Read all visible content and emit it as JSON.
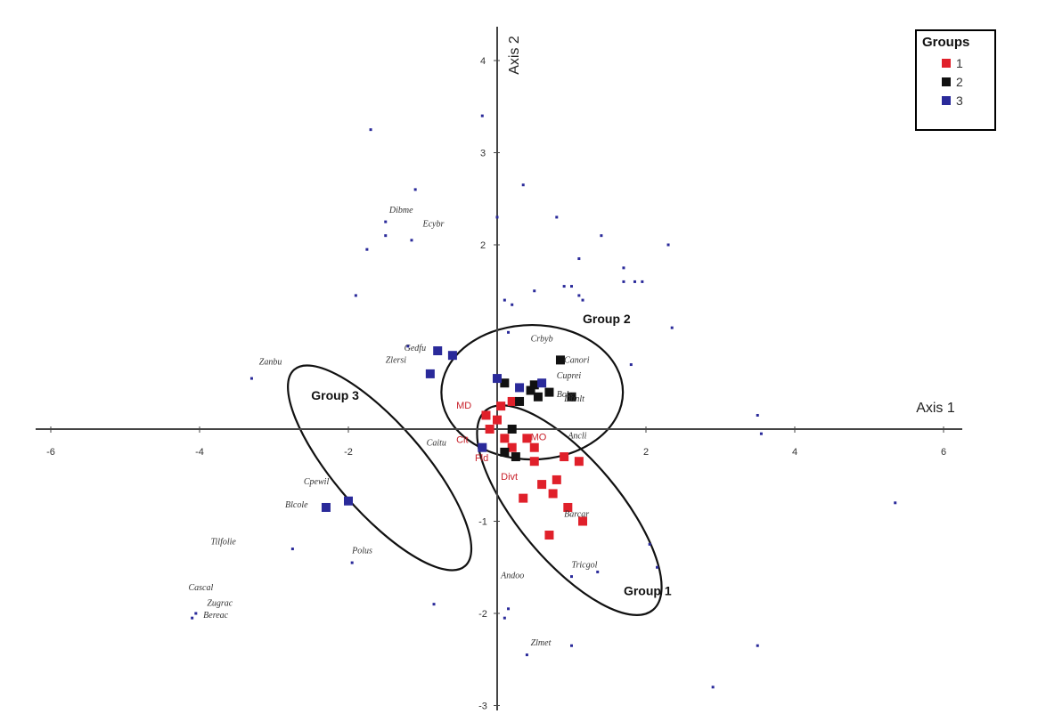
{
  "chart_data": {
    "type": "scatter",
    "title": "",
    "xlabel": "Axis 1",
    "ylabel": "Axis 2",
    "xlim": [
      -6,
      6
    ],
    "ylim": [
      -3,
      4.3
    ],
    "x_ticks": [
      -6,
      -4,
      -2,
      2,
      4,
      6
    ],
    "y_ticks": [
      4,
      3,
      2,
      -1,
      -2,
      -3
    ],
    "legend": {
      "title": "Groups",
      "position": "top-right",
      "entries": [
        {
          "label": "1",
          "color": "#e0202a"
        },
        {
          "label": "2",
          "color": "#111111"
        },
        {
          "label": "3",
          "color": "#2a2a9a"
        }
      ]
    },
    "groups": [
      {
        "name": "Group 1",
        "label_at": [
          1.7,
          -1.8
        ],
        "ellipse": {
          "cx": 0.97,
          "cy": -0.88,
          "rx": 1.75,
          "ry": 0.55,
          "angle_deg": 50
        }
      },
      {
        "name": "Group 2",
        "label_at": [
          1.15,
          1.15
        ],
        "ellipse": {
          "cx": 0.47,
          "cy": 0.4,
          "rx": 1.22,
          "ry": 0.73,
          "angle_deg": 0
        }
      },
      {
        "name": "Group 3",
        "label_at": [
          -2.5,
          0.32
        ],
        "ellipse": {
          "cx": -1.58,
          "cy": -0.42,
          "rx": 1.75,
          "ry": 0.48,
          "angle_deg": 49
        }
      }
    ],
    "series": [
      {
        "name": "1",
        "color": "#e0202a",
        "marker": "square",
        "points": [
          [
            0.2,
            0.3
          ],
          [
            0.0,
            0.1
          ],
          [
            -0.1,
            0.0
          ],
          [
            0.1,
            -0.1
          ],
          [
            0.2,
            -0.2
          ],
          [
            0.4,
            -0.1
          ],
          [
            0.5,
            -0.2
          ],
          [
            0.5,
            -0.35
          ],
          [
            0.9,
            -0.3
          ],
          [
            1.1,
            -0.35
          ],
          [
            0.8,
            -0.55
          ],
          [
            0.6,
            -0.6
          ],
          [
            0.75,
            -0.7
          ],
          [
            0.95,
            -0.85
          ],
          [
            1.15,
            -1.0
          ],
          [
            0.7,
            -1.15
          ],
          [
            0.35,
            -0.75
          ],
          [
            0.05,
            0.25
          ],
          [
            -0.15,
            0.15
          ]
        ]
      },
      {
        "name": "2",
        "color": "#111111",
        "marker": "square",
        "points": [
          [
            0.45,
            0.42
          ],
          [
            0.55,
            0.35
          ],
          [
            0.7,
            0.4
          ],
          [
            0.85,
            0.75
          ],
          [
            1.0,
            0.35
          ],
          [
            0.3,
            0.3
          ],
          [
            0.5,
            0.48
          ],
          [
            0.1,
            0.5
          ],
          [
            0.2,
            0.0
          ],
          [
            0.25,
            -0.3
          ],
          [
            0.1,
            -0.25
          ]
        ]
      },
      {
        "name": "3",
        "color": "#2a2a9a",
        "marker": "square",
        "points": [
          [
            -0.8,
            0.85
          ],
          [
            -0.6,
            0.8
          ],
          [
            -0.9,
            0.6
          ],
          [
            -2.3,
            -0.85
          ],
          [
            -2.0,
            -0.78
          ],
          [
            0.0,
            0.55
          ],
          [
            -0.2,
            -0.2
          ],
          [
            0.6,
            0.5
          ],
          [
            0.3,
            0.45
          ]
        ]
      },
      {
        "name": "",
        "color": "#2a2a9a",
        "marker": "dot",
        "points": [
          [
            -1.7,
            3.25
          ],
          [
            -1.1,
            2.6
          ],
          [
            -1.5,
            2.25
          ],
          [
            -1.5,
            2.1
          ],
          [
            -1.15,
            2.05
          ],
          [
            -1.75,
            1.95
          ],
          [
            -1.9,
            1.45
          ],
          [
            -0.2,
            3.4
          ],
          [
            0.35,
            2.65
          ],
          [
            0.8,
            2.3
          ],
          [
            0.0,
            2.3
          ],
          [
            1.1,
            1.85
          ],
          [
            1.4,
            2.1
          ],
          [
            1.7,
            1.75
          ],
          [
            1.85,
            1.6
          ],
          [
            1.95,
            1.6
          ],
          [
            1.7,
            1.6
          ],
          [
            2.3,
            2.0
          ],
          [
            2.35,
            1.1
          ],
          [
            0.9,
            1.55
          ],
          [
            0.5,
            1.5
          ],
          [
            1.0,
            1.55
          ],
          [
            1.1,
            1.45
          ],
          [
            0.1,
            1.4
          ],
          [
            0.2,
            1.35
          ],
          [
            1.15,
            1.4
          ],
          [
            0.15,
            1.05
          ],
          [
            -1.2,
            0.9
          ],
          [
            -3.3,
            0.55
          ],
          [
            1.8,
            0.7
          ],
          [
            3.5,
            0.15
          ],
          [
            3.55,
            -0.05
          ],
          [
            5.35,
            -0.8
          ],
          [
            -2.75,
            -1.3
          ],
          [
            -1.95,
            -1.45
          ],
          [
            -4.05,
            -2.0
          ],
          [
            -4.1,
            -2.05
          ],
          [
            -0.85,
            -1.9
          ],
          [
            0.1,
            -2.05
          ],
          [
            0.15,
            -1.95
          ],
          [
            1.0,
            -1.6
          ],
          [
            1.35,
            -1.55
          ],
          [
            2.15,
            -1.5
          ],
          [
            2.05,
            -1.25
          ],
          [
            0.4,
            -2.45
          ],
          [
            1.0,
            -2.35
          ],
          [
            3.5,
            -2.35
          ],
          [
            2.9,
            -2.8
          ]
        ]
      }
    ],
    "annotations": [
      {
        "text": "Dibme",
        "at": [
          -1.45,
          2.35
        ]
      },
      {
        "text": "Ecybr",
        "at": [
          -1.0,
          2.2
        ]
      },
      {
        "text": "Zanbu",
        "at": [
          -3.2,
          0.7
        ]
      },
      {
        "text": "Gedfu",
        "at": [
          -1.25,
          0.85
        ]
      },
      {
        "text": "Zlersi",
        "at": [
          -1.5,
          0.72
        ]
      },
      {
        "text": "Group 3",
        "at": [
          -2.5,
          0.32
        ]
      },
      {
        "text": "Caitu",
        "at": [
          -0.95,
          -0.18
        ]
      },
      {
        "text": "Cpewil",
        "at": [
          -2.6,
          -0.6
        ]
      },
      {
        "text": "Blcole",
        "at": [
          -2.85,
          -0.85
        ]
      },
      {
        "text": "Polus",
        "at": [
          -1.95,
          -1.35
        ]
      },
      {
        "text": "Tilfolie",
        "at": [
          -3.85,
          -1.25
        ]
      },
      {
        "text": "Cascal",
        "at": [
          -4.15,
          -1.75
        ]
      },
      {
        "text": "Zugrac",
        "at": [
          -3.9,
          -1.92
        ]
      },
      {
        "text": "Bereac",
        "at": [
          -3.95,
          -2.05
        ]
      },
      {
        "text": "Crbyb",
        "at": [
          0.45,
          0.95
        ]
      },
      {
        "text": "Canori",
        "at": [
          0.9,
          0.72
        ]
      },
      {
        "text": "Cuprei",
        "at": [
          0.8,
          0.55
        ]
      },
      {
        "text": "Bobe",
        "at": [
          0.8,
          0.35
        ]
      },
      {
        "text": "Dunlt",
        "at": [
          0.9,
          0.3
        ]
      },
      {
        "text": "Ancli",
        "at": [
          0.95,
          -0.1
        ]
      },
      {
        "text": "Barcar",
        "at": [
          0.9,
          -0.95
        ]
      },
      {
        "text": "Tricgol",
        "at": [
          1.0,
          -1.5
        ]
      },
      {
        "text": "Andoo",
        "at": [
          0.05,
          -1.62
        ]
      },
      {
        "text": "Zlmet",
        "at": [
          0.45,
          -2.35
        ]
      }
    ],
    "annotations_red": [
      {
        "text": "MD",
        "at": [
          -0.55,
          0.22
        ]
      },
      {
        "text": "Cit",
        "at": [
          -0.55,
          -0.15
        ]
      },
      {
        "text": "Fld",
        "at": [
          -0.3,
          -0.35
        ]
      },
      {
        "text": "MO",
        "at": [
          0.45,
          -0.12
        ]
      },
      {
        "text": "Divt",
        "at": [
          0.05,
          -0.55
        ]
      }
    ]
  }
}
